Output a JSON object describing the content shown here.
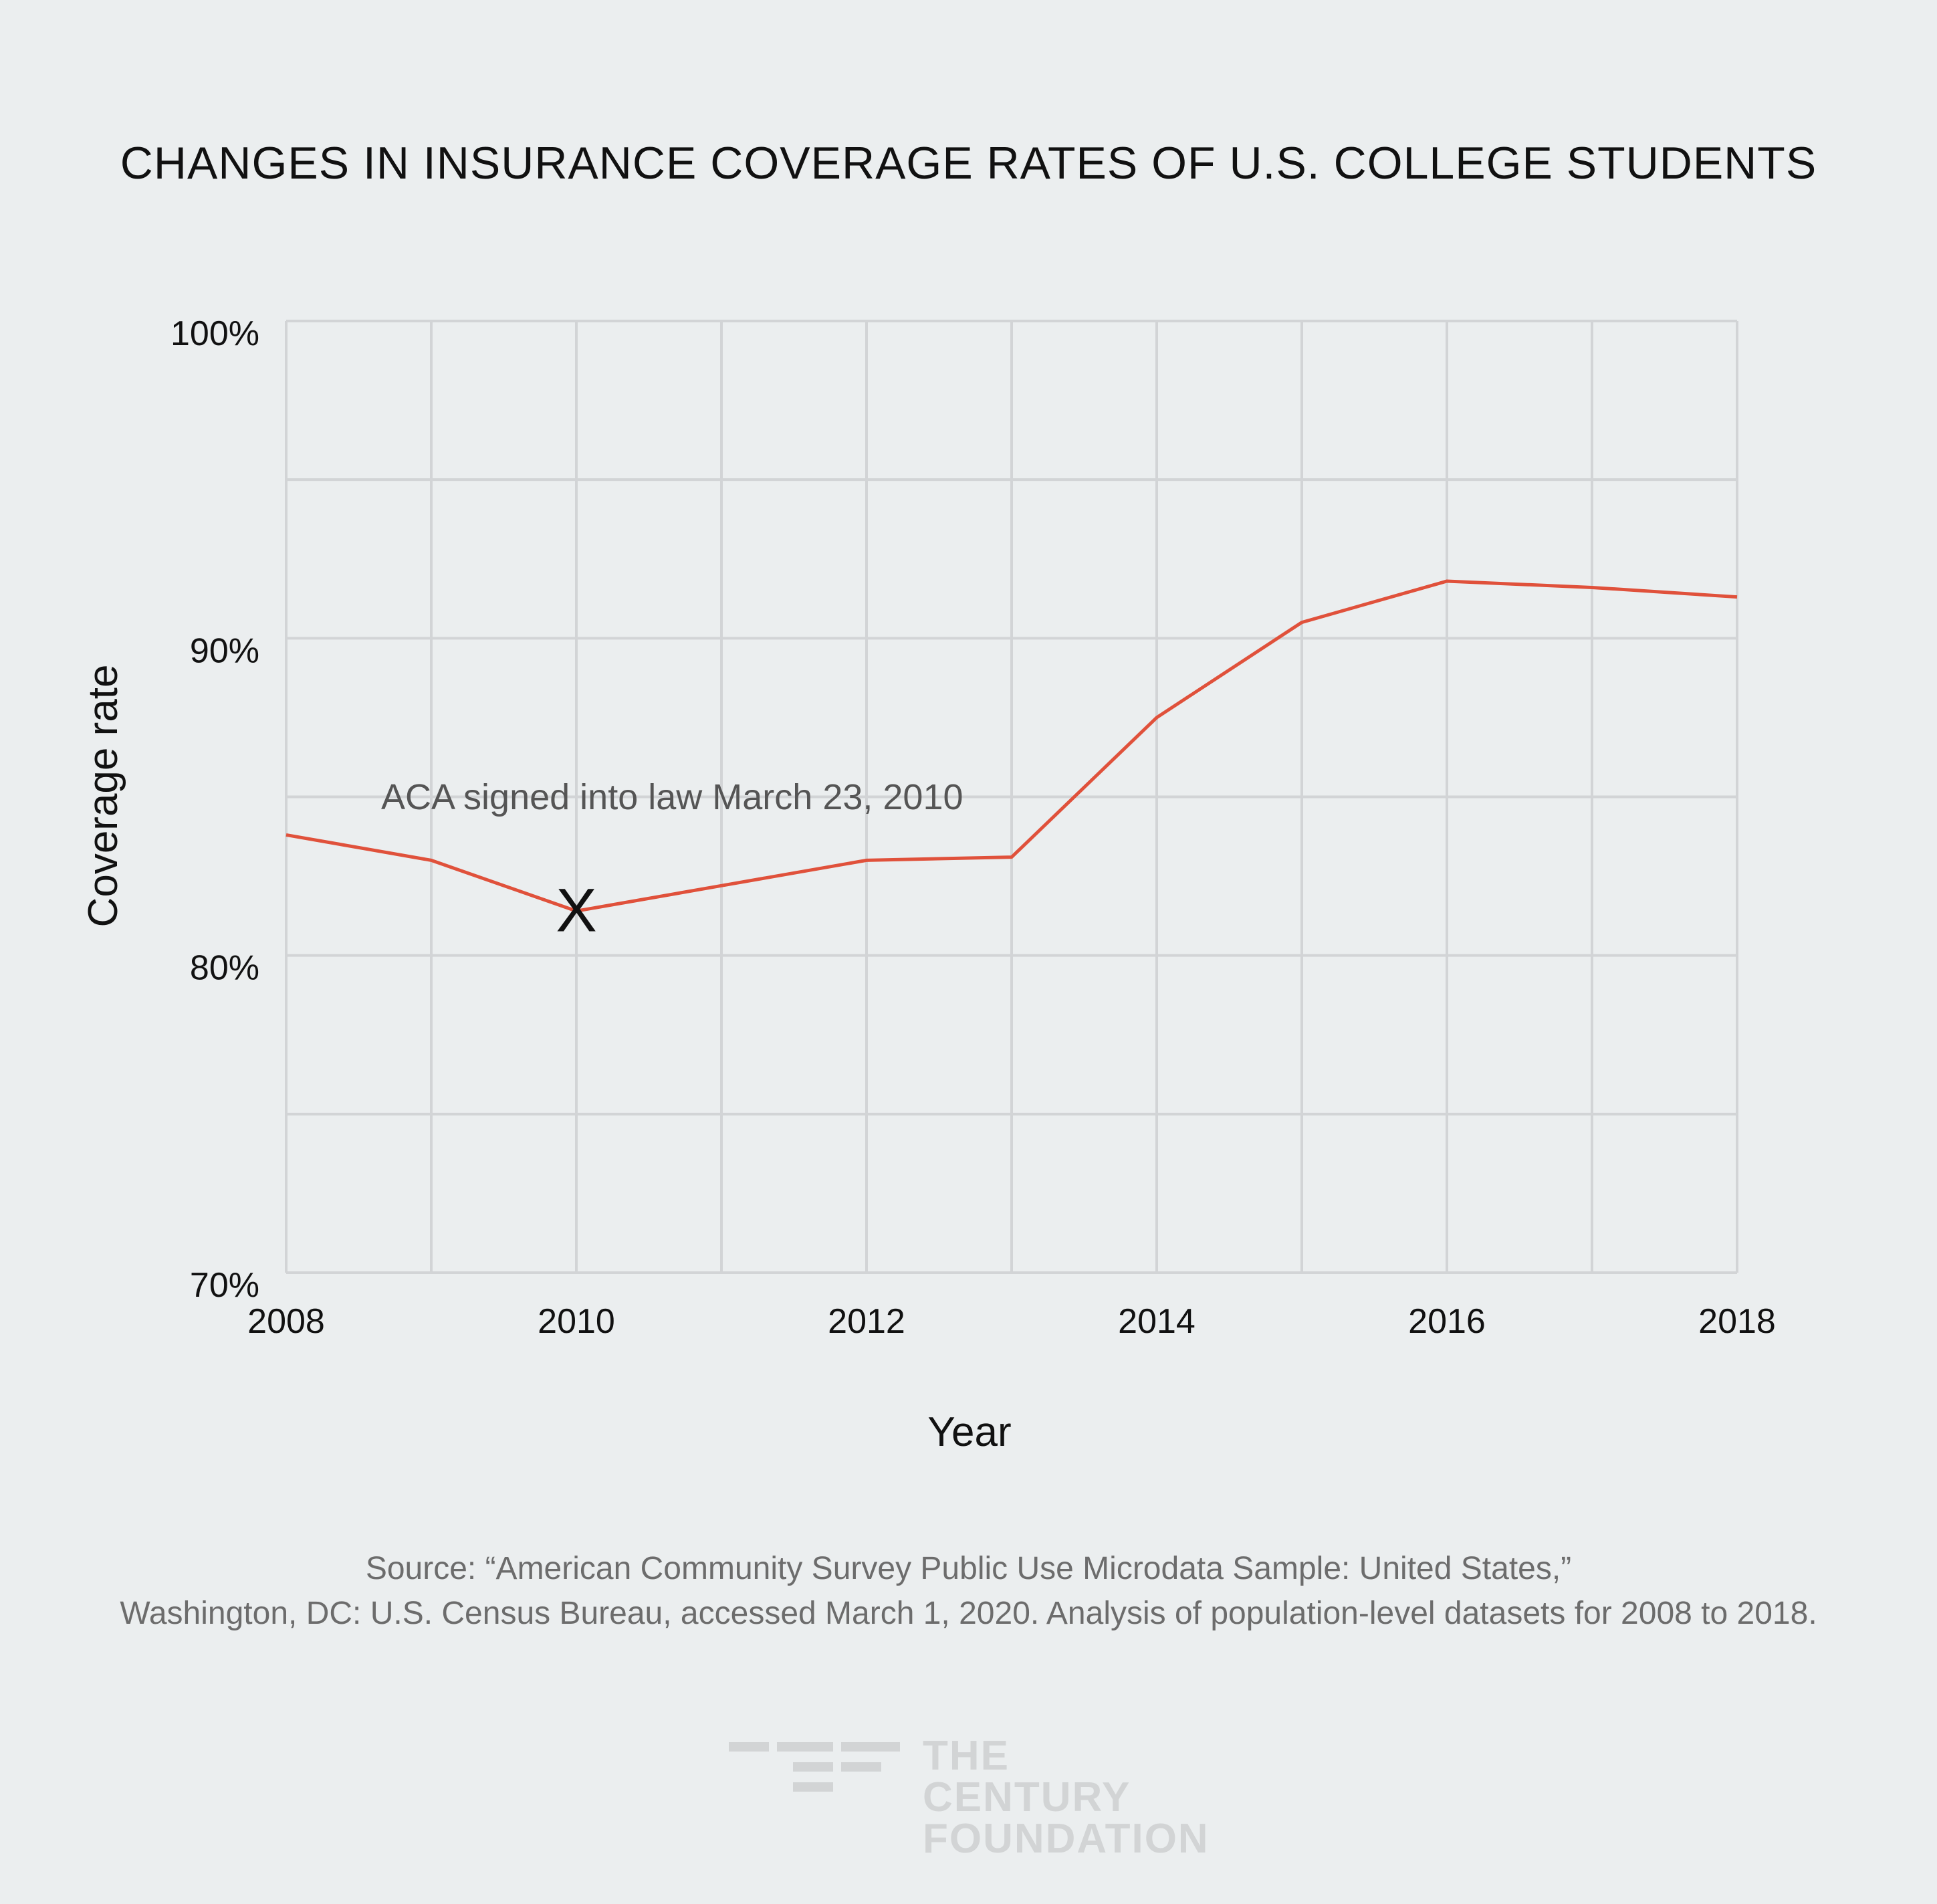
{
  "chart_data": {
    "type": "line",
    "title": "CHANGES IN INSURANCE COVERAGE RATES OF U.S. COLLEGE STUDENTS",
    "xlabel": "Year",
    "ylabel": "Coverage rate",
    "x": [
      2008,
      2009,
      2010,
      2011,
      2012,
      2013,
      2014,
      2015,
      2016,
      2017,
      2018
    ],
    "series": [
      {
        "name": "Coverage rate",
        "color": "#e0513b",
        "values": [
          83.8,
          83.0,
          81.4,
          82.2,
          83.0,
          83.1,
          87.5,
          90.5,
          91.8,
          91.6,
          91.3
        ]
      }
    ],
    "xticks": [
      2008,
      2010,
      2012,
      2014,
      2016,
      2018
    ],
    "xtick_labels": [
      "2008",
      "2010",
      "2012",
      "2014",
      "2016",
      "2018"
    ],
    "yticks": [
      70,
      80,
      90,
      100
    ],
    "ytick_labels": [
      "70%",
      "80%",
      "90%",
      "100%"
    ],
    "xlim": [
      2008,
      2018
    ],
    "ylim": [
      70,
      100
    ],
    "grid": true,
    "annotation": {
      "text": "ACA signed into law March 23, 2010",
      "x": 2010,
      "y": 81.4,
      "marker": "X"
    }
  },
  "source": {
    "line1": "Source:   “American Community Survey Public Use Microdata Sample: United States,”",
    "line2": "Washington, DC: U.S. Census Bureau, accessed March 1, 2020. Analysis of population-level datasets for 2008 to 2018."
  },
  "logo": {
    "line1": "THE CENTURY",
    "line2": "FOUNDATION"
  },
  "colors": {
    "background": "#ebeeef",
    "grid": "#d2d4d6",
    "line": "#e0513b",
    "logo": "#d2d4d5"
  }
}
